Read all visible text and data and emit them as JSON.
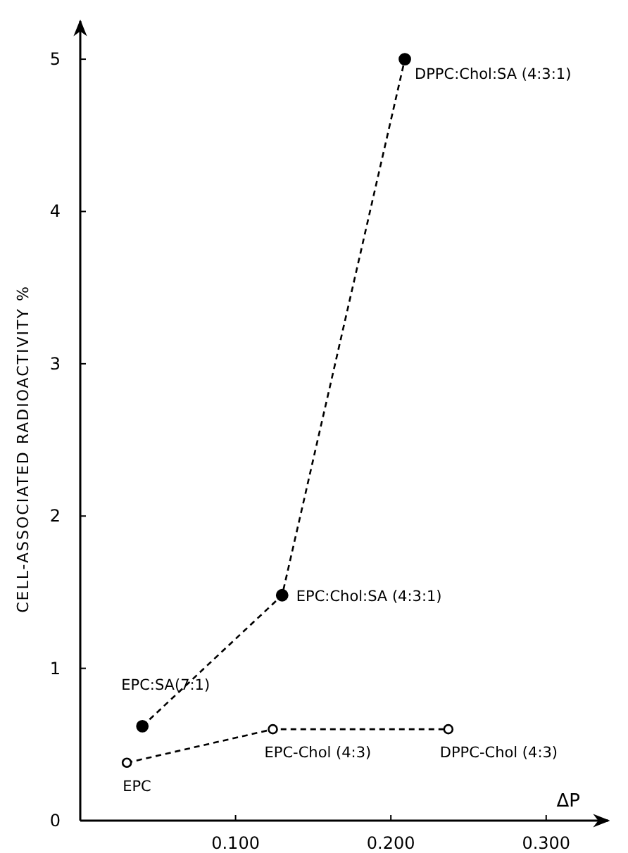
{
  "chart_data": {
    "type": "line",
    "xlabel": "ΔP",
    "ylabel": "CELL-ASSOCIATED RADIOACTIVITY %",
    "xlim": [
      0,
      0.34
    ],
    "xticks": [
      {
        "value": 0.1,
        "label": "0.100"
      },
      {
        "value": 0.2,
        "label": "0.200"
      },
      {
        "value": 0.3,
        "label": "0.300"
      }
    ],
    "ylim": [
      0,
      5.25
    ],
    "yticks": [
      0,
      1,
      2,
      3,
      4,
      5
    ],
    "grid": false,
    "marker": "circle",
    "line_style": "dashed",
    "series": [
      {
        "color": "#000000",
        "x": [
          0.04,
          0.13,
          0.209
        ],
        "values": [
          0.62,
          1.48,
          5.0
        ]
      },
      {
        "color": "#000000",
        "x": [
          0.03,
          0.124,
          0.237
        ],
        "values": [
          0.38,
          0.6,
          0.6
        ]
      }
    ],
    "annotations": [
      {
        "text": "EPC:SA(7:1)",
        "x": 0.04,
        "y": 0.62
      },
      {
        "text": "EPC:Chol:SA (4:3:1)",
        "x": 0.13,
        "y": 1.48
      },
      {
        "text": "DPPC:Chol:SA (4:3:1)",
        "x": 0.209,
        "y": 5.0
      },
      {
        "text": "EPC",
        "x": 0.03,
        "y": 0.38
      },
      {
        "text": "EPC-Chol (4:3)",
        "x": 0.124,
        "y": 0.6
      },
      {
        "text": "DPPC-Chol (4:3)",
        "x": 0.237,
        "y": 0.6
      }
    ]
  }
}
